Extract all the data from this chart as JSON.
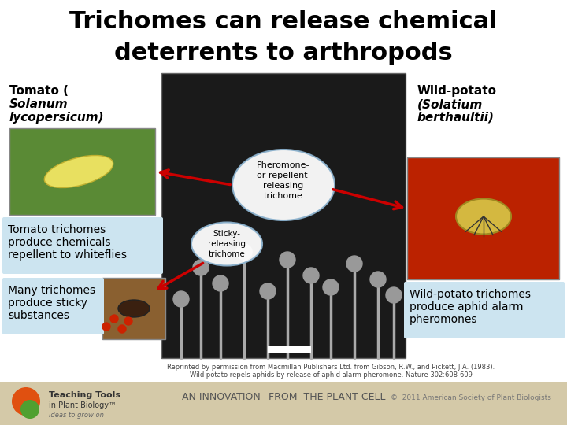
{
  "title_line1": "Trichomes can release chemical",
  "title_line2": "deterrents to arthropods",
  "title_fontsize": 22,
  "title_fontweight": "bold",
  "bg_color": "#ffffff",
  "footer_bg": "#d4c9a8",
  "box_bg": "#cce4f0",
  "arrow_color": "#cc0000",
  "ellipse_edge": "#8ab0cc",
  "ellipse_fill": "#ffffff",
  "center_img_color": "#888888",
  "left_photo_color": "#5a8a35",
  "ant_photo_color": "#8a6030",
  "aphid_photo_color": "#bb2200",
  "footer_text": "AN INNOVATION –FROM  THE PLANT CELL",
  "copyright_text": "©  2011 American Society of Plant Biologists",
  "citation1": "Reprinted by permission from Macmillan Publishers Ltd. from Gibson, R.W., and Pickett, J.A. (1983).",
  "citation2": "Wild potato repels aphids by release of aphid alarm pheromone. Nature 302:608-609"
}
